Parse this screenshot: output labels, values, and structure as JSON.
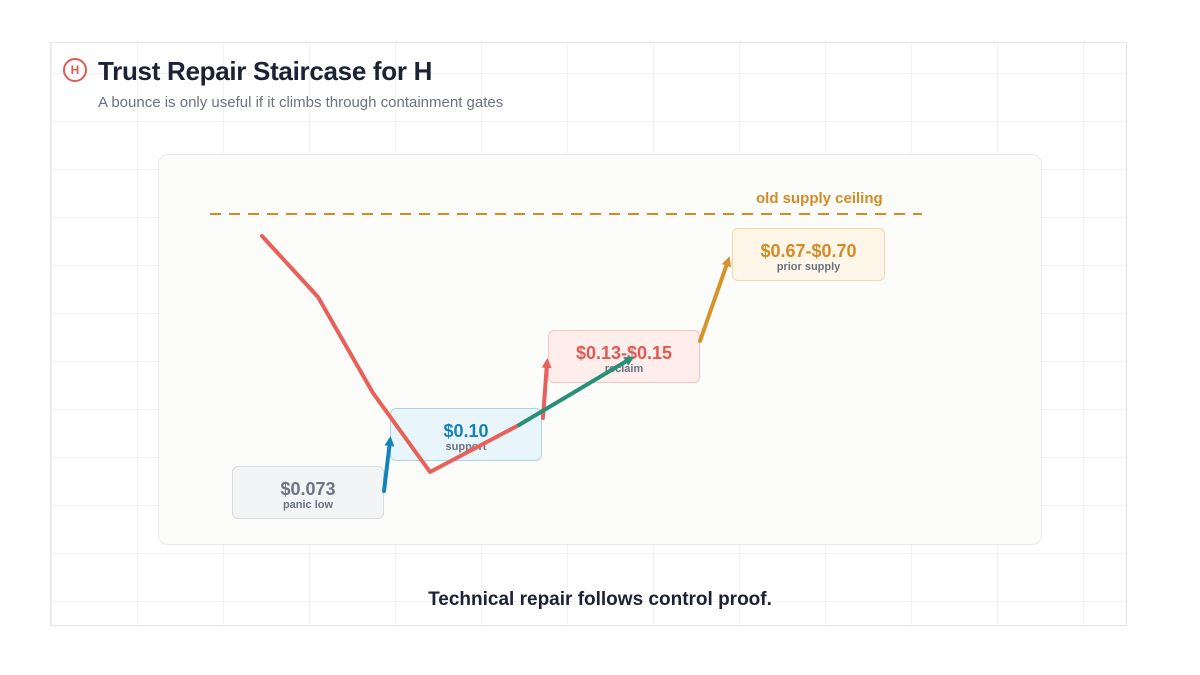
{
  "header": {
    "logo_letter": "H",
    "title": "Trust Repair Staircase for H",
    "subtitle": "A bounce is only useful if it climbs through containment gates"
  },
  "ceiling": {
    "label": "old supply ceiling",
    "color": "#d48a25"
  },
  "levels": [
    {
      "price": "$0.073",
      "label": "panic low",
      "color": "#6b7385",
      "fill": "#f3f4f6",
      "border": "#d9dbe0"
    },
    {
      "price": "$0.10",
      "label": "support",
      "color": "#1683b8",
      "fill": "#e8f5fa",
      "border": "#a9d6e8"
    },
    {
      "price": "$0.13-$0.15",
      "label": "reclaim",
      "color": "#e05a55",
      "fill": "#fdeeec",
      "border": "#f4c4c0"
    },
    {
      "price": "$0.67-$0.70",
      "label": "prior supply",
      "color": "#d48a25",
      "fill": "#fef6e8",
      "border": "#f2d7a7"
    }
  ],
  "colors": {
    "decline_line": "#e8605a",
    "step_support": "#1683b8",
    "step_reclaim": "#e8605a",
    "recovery_line": "#2a8f78",
    "step_prior_supply": "#d8922a"
  },
  "footer": {
    "text": "Technical repair follows control proof."
  }
}
